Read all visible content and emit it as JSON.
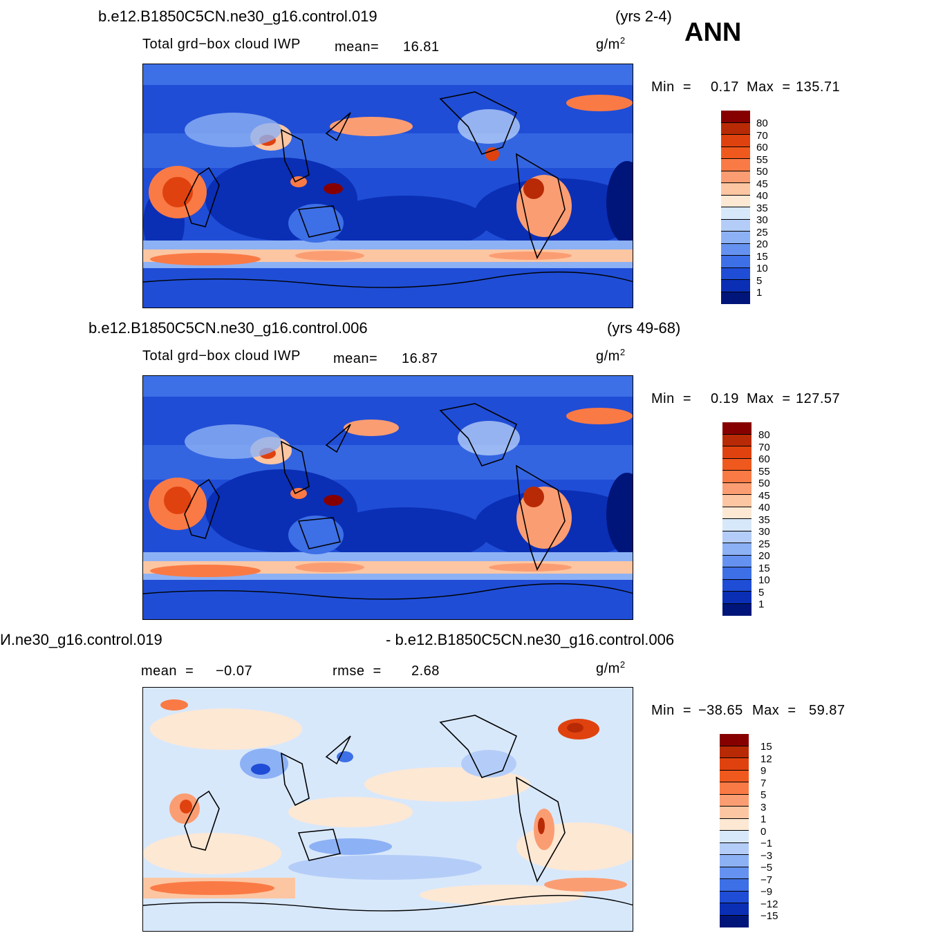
{
  "season": "ANN",
  "panels": [
    {
      "case": "b.e12.B1850C5CN.ne30_g16.control.019",
      "years": "(yrs 2-4)",
      "variable": "Total grd−box cloud IWP",
      "stat1_label": "mean=",
      "stat1_value": "16.81",
      "units": "g/m",
      "units_sup": "2",
      "min_label": "Min  =",
      "min_value": "0.17",
      "max_label": "Max  =",
      "max_value": "135.71",
      "levels": [
        "80",
        "70",
        "60",
        "55",
        "50",
        "45",
        "40",
        "35",
        "30",
        "25",
        "20",
        "15",
        "10",
        "5",
        "1"
      ]
    },
    {
      "case": "b.e12.B1850C5CN.ne30_g16.control.006",
      "years": "(yrs 49-68)",
      "variable": "Total grd−box cloud IWP",
      "stat1_label": "mean=",
      "stat1_value": "16.87",
      "units": "g/m",
      "units_sup": "2",
      "min_label": "Min  =",
      "min_value": "0.19",
      "max_label": "Max  =",
      "max_value": "127.57",
      "levels": [
        "80",
        "70",
        "60",
        "55",
        "50",
        "45",
        "40",
        "35",
        "30",
        "25",
        "20",
        "15",
        "10",
        "5",
        "1"
      ]
    },
    {
      "case": "И.ne30_g16.control.019",
      "case2": "- b.e12.B1850C5CN.ne30_g16.control.006",
      "stat1_label": "mean  =",
      "stat1_value": "−0.07",
      "stat2_label": "rmse  =",
      "stat2_value": "2.68",
      "units": "g/m",
      "units_sup": "2",
      "min_label": "Min  =",
      "min_value": "−38.65",
      "max_label": "Max  =",
      "max_value": "59.87",
      "levels": [
        "15",
        "12",
        "9",
        "7",
        "5",
        "3",
        "1",
        "0",
        "−1",
        "−3",
        "−5",
        "−7",
        "−9",
        "−12",
        "−15"
      ]
    }
  ],
  "colors": {
    "abs_scale": [
      "#870000",
      "#b82a05",
      "#e0420f",
      "#f0591e",
      "#fa7a45",
      "#fb9d72",
      "#fdc6a2",
      "#fde8d4",
      "#d8e8fb",
      "#b4cdf8",
      "#8db1f5",
      "#6592f0",
      "#3d6fe6",
      "#1f4dd6",
      "#0a2fb5",
      "#00157a"
    ],
    "diff_scale": [
      "#870000",
      "#b82a05",
      "#e0420f",
      "#f0591e",
      "#fa7a45",
      "#fb9d72",
      "#fdc6a2",
      "#fde8d4",
      "#d8e8fb",
      "#b4cdf8",
      "#8db1f5",
      "#6592f0",
      "#3d6fe6",
      "#1f4dd6",
      "#0a2fb5",
      "#00157a"
    ]
  }
}
